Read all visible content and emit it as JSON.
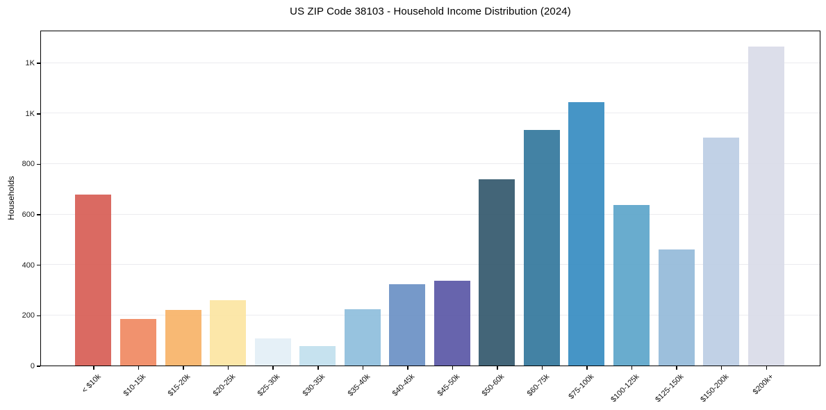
{
  "title": "US ZIP Code 38103 - Household Income Distribution (2024)",
  "chart_data": {
    "type": "bar",
    "title": "US ZIP Code 38103 - Household Income Distribution (2024)",
    "xlabel": "",
    "ylabel": "Households",
    "legend_position": "none",
    "grid": "horizontal",
    "ylim": [
      0,
      1330
    ],
    "categories": [
      "< $10k",
      "$10-15k",
      "$15-20k",
      "$20-25k",
      "$25-30k",
      "$30-35k",
      "$35-40k",
      "$40-45k",
      "$45-50k",
      "$50-60k",
      "$60-75k",
      "$75-100k",
      "$100-125k",
      "$125-150k",
      "$150-200k",
      "$200k+"
    ],
    "values": [
      678,
      185,
      220,
      258,
      107,
      77,
      223,
      322,
      335,
      739,
      934,
      1043,
      637,
      459,
      903,
      1264
    ],
    "bar_colors": [
      "#d75f56",
      "#f08a63",
      "#f8b469",
      "#fce5a2",
      "#e3eff6",
      "#c2e0ee",
      "#8fbedd",
      "#6c91c5",
      "#5b58a7",
      "#35596e",
      "#35799d",
      "#388dc2",
      "#5ea6ca",
      "#94bad9",
      "#bccde4",
      "#d9dbe8"
    ],
    "yticks": [
      {
        "value": 0,
        "label": "0"
      },
      {
        "value": 200,
        "label": "200"
      },
      {
        "value": 400,
        "label": "400"
      },
      {
        "value": 600,
        "label": "600"
      },
      {
        "value": 800,
        "label": "800"
      },
      {
        "value": 1000,
        "label": "1K"
      },
      {
        "value": 1200,
        "label": "1K"
      }
    ],
    "frame_color": "#000000",
    "gridline_color": "#ebebef",
    "background_color": "#ffffff"
  }
}
